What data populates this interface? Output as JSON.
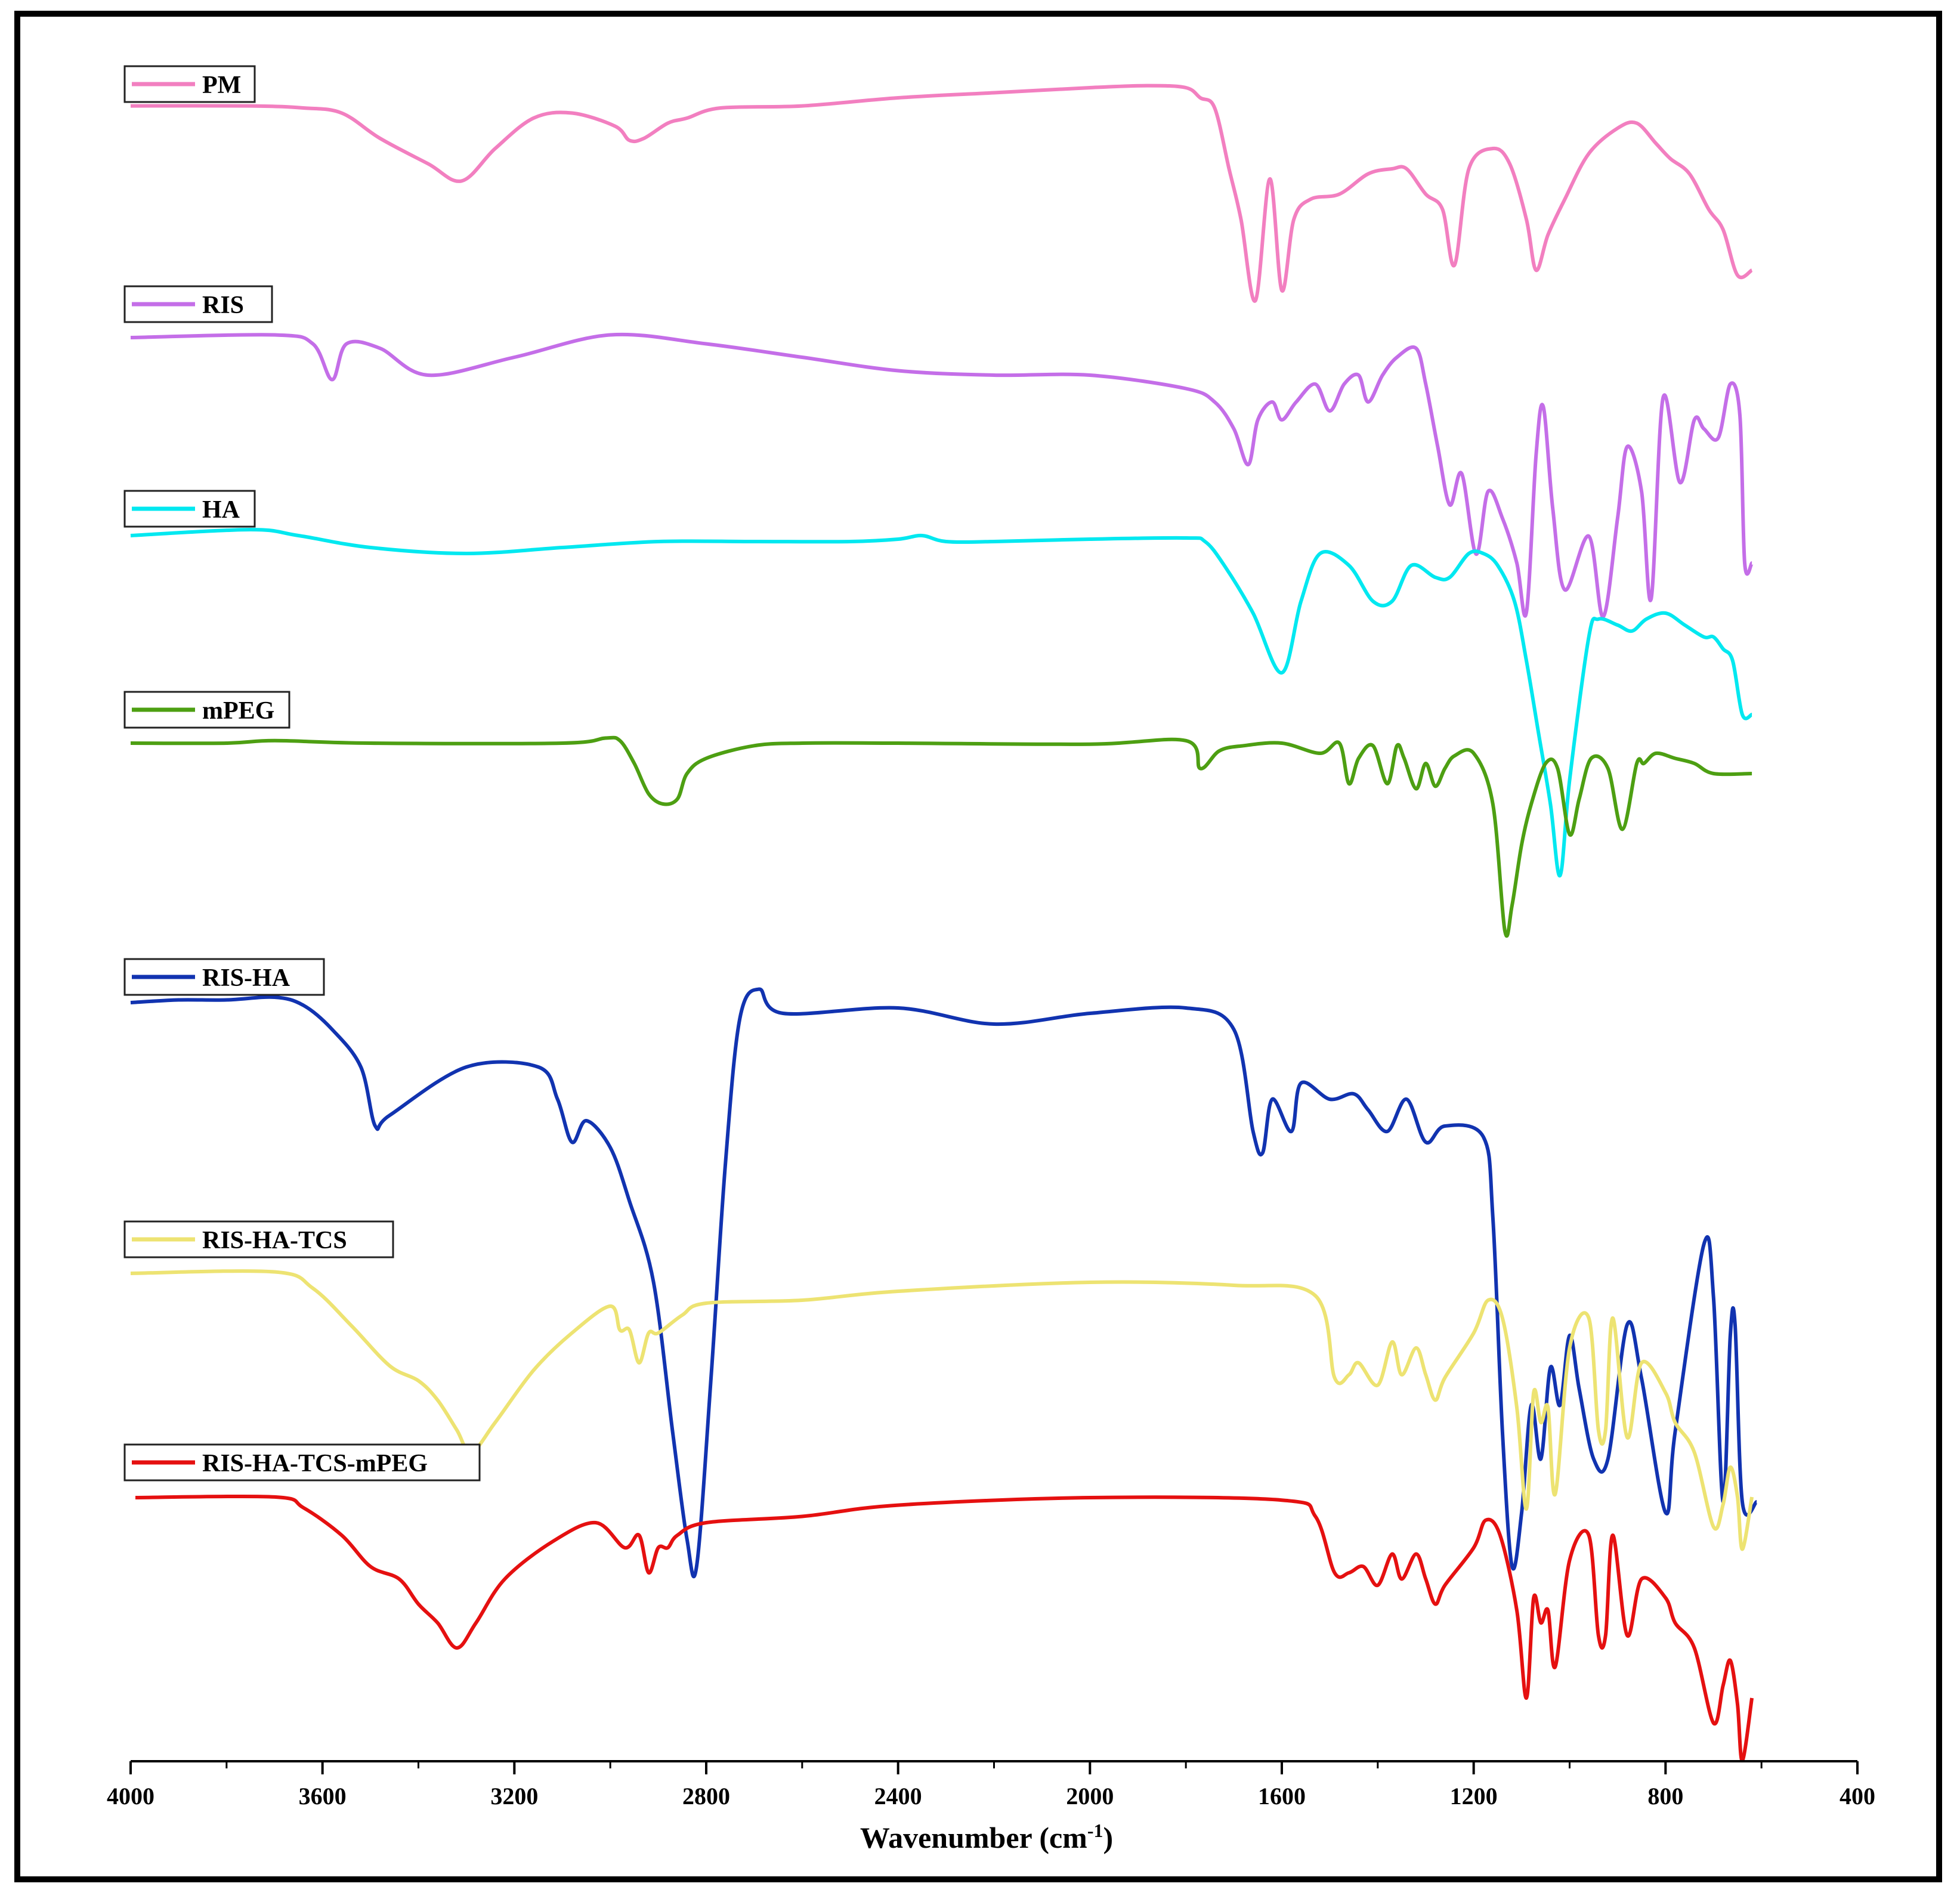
{
  "chart_data": {
    "type": "line",
    "xlabel": "Wavenumber (cm",
    "xlabel_sup": "-1",
    "xlabel_close": ")",
    "ylabel": "",
    "title": "",
    "xlim": [
      4000,
      400
    ],
    "x_reversed": true,
    "x_ticks": [
      4000,
      3600,
      3200,
      2800,
      2400,
      2000,
      1600,
      1200,
      800,
      400
    ],
    "x_tick_labels": [
      "4000",
      "3600",
      "3200",
      "2800",
      "2400",
      "2000",
      "1600",
      "1200",
      "800",
      "400"
    ],
    "y_axis_shown": false,
    "grid": false,
    "legend": "separate label box above each trace, top-left",
    "series": [
      {
        "name": "PM",
        "color": "#f27fc0",
        "x": [
          4000,
          3750,
          3640,
          3560,
          3480,
          3380,
          3310,
          3240,
          3160,
          3080,
          2990,
          2960,
          2930,
          2880,
          2840,
          2770,
          2600,
          2400,
          2200,
          2000,
          1880,
          1800,
          1770,
          1740,
          1710,
          1685,
          1655,
          1625,
          1600,
          1575,
          1540,
          1480,
          1420,
          1370,
          1340,
          1300,
          1265,
          1240,
          1210,
          1160,
          1125,
          1090,
          1070,
          1045,
          1010,
          960,
          900,
          860,
          820,
          790,
          750,
          710,
          680,
          650,
          620
        ],
        "y": [
          -0.12,
          -0.12,
          -0.1,
          -0.05,
          0.2,
          0.45,
          0.62,
          0.3,
          0.0,
          -0.05,
          0.08,
          0.22,
          0.2,
          0.05,
          0.0,
          -0.1,
          -0.12,
          -0.2,
          -0.25,
          -0.3,
          -0.32,
          -0.3,
          -0.2,
          -0.1,
          0.5,
          1.0,
          1.8,
          0.6,
          1.7,
          1.0,
          0.8,
          0.75,
          0.55,
          0.5,
          0.5,
          0.75,
          0.9,
          1.45,
          0.5,
          0.3,
          0.45,
          1.0,
          1.5,
          1.15,
          0.8,
          0.35,
          0.1,
          0.05,
          0.25,
          0.4,
          0.55,
          0.9,
          1.1,
          1.55,
          1.5
        ]
      },
      {
        "name": "RIS",
        "color": "#c46ee8",
        "x": [
          4000,
          3700,
          3620,
          3580,
          3550,
          3480,
          3380,
          3200,
          3000,
          2800,
          2600,
          2400,
          2200,
          2000,
          1800,
          1740,
          1700,
          1670,
          1650,
          1620,
          1600,
          1570,
          1530,
          1500,
          1470,
          1440,
          1420,
          1390,
          1360,
          1320,
          1300,
          1275,
          1250,
          1225,
          1195,
          1170,
          1140,
          1110,
          1090,
          1070,
          1055,
          1035,
          1010,
          960,
          930,
          900,
          880,
          850,
          830,
          805,
          770,
          740,
          720,
          690,
          665,
          645,
          635,
          620
        ],
        "y": [
          -0.02,
          -0.05,
          0.05,
          0.45,
          0.05,
          0.1,
          0.4,
          0.2,
          -0.05,
          0.05,
          0.2,
          0.35,
          0.4,
          0.4,
          0.55,
          0.7,
          1.0,
          1.4,
          0.9,
          0.7,
          0.9,
          0.7,
          0.5,
          0.8,
          0.5,
          0.4,
          0.7,
          0.4,
          0.2,
          0.1,
          0.5,
          1.2,
          1.85,
          1.5,
          2.4,
          1.7,
          2.0,
          2.5,
          3.05,
          1.3,
          0.75,
          1.9,
          2.8,
          2.2,
          3.1,
          2.0,
          1.2,
          1.7,
          2.9,
          0.65,
          1.6,
          0.9,
          1.0,
          1.1,
          0.5,
          0.85,
          2.5,
          2.5
        ]
      },
      {
        "name": "HA",
        "color": "#00e8f0",
        "x": [
          4000,
          3750,
          3650,
          3500,
          3300,
          3100,
          2900,
          2700,
          2500,
          2400,
          2350,
          2300,
          2200,
          2000,
          1800,
          1760,
          1720,
          1660,
          1600,
          1560,
          1520,
          1460,
          1410,
          1370,
          1330,
          1280,
          1250,
          1210,
          1180,
          1150,
          1115,
          1090,
          1065,
          1040,
          1020,
          1000,
          960,
          940,
          900,
          870,
          840,
          800,
          760,
          720,
          700,
          680,
          660,
          640,
          620
        ],
        "y": [
          -0.05,
          -0.1,
          -0.05,
          0.05,
          0.1,
          0.05,
          0.0,
          0.0,
          0.0,
          -0.02,
          -0.05,
          0.0,
          0.0,
          -0.02,
          -0.03,
          0.0,
          0.2,
          0.6,
          1.1,
          0.5,
          0.1,
          0.2,
          0.5,
          0.5,
          0.2,
          0.3,
          0.3,
          0.1,
          0.1,
          0.2,
          0.5,
          1.0,
          1.6,
          2.2,
          2.8,
          2.0,
          0.8,
          0.65,
          0.7,
          0.75,
          0.65,
          0.6,
          0.7,
          0.8,
          0.8,
          0.9,
          1.0,
          1.45,
          1.45
        ]
      },
      {
        "name": "mPEG",
        "color": "#4d9f12",
        "x": [
          4000,
          3800,
          3700,
          3500,
          3100,
          3010,
          2980,
          2950,
          2920,
          2890,
          2860,
          2840,
          2800,
          2700,
          2600,
          2400,
          2000,
          1800,
          1770,
          1730,
          1680,
          1600,
          1520,
          1480,
          1460,
          1440,
          1410,
          1380,
          1360,
          1345,
          1320,
          1300,
          1280,
          1260,
          1240,
          1200,
          1160,
          1135,
          1120,
          1100,
          1080,
          1050,
          1025,
          1000,
          980,
          955,
          920,
          890,
          860,
          845,
          820,
          780,
          740,
          700,
          620
        ],
        "y": [
          0.0,
          0.0,
          -0.05,
          0.0,
          0.0,
          -0.1,
          -0.05,
          0.4,
          1.0,
          1.2,
          1.1,
          0.6,
          0.3,
          0.05,
          0.0,
          0.0,
          0.02,
          -0.05,
          0.5,
          0.15,
          0.05,
          0.0,
          0.2,
          0.0,
          0.8,
          0.3,
          0.05,
          0.8,
          0.05,
          0.3,
          0.9,
          0.4,
          0.85,
          0.5,
          0.25,
          0.2,
          1.2,
          3.7,
          3.2,
          2.0,
          1.2,
          0.4,
          0.5,
          1.8,
          1.1,
          0.3,
          0.5,
          1.7,
          0.4,
          0.4,
          0.2,
          0.3,
          0.4,
          0.6,
          0.6
        ]
      },
      {
        "name": "RIS-HA",
        "color": "#1133b0",
        "x": [
          4000,
          3900,
          3800,
          3700,
          3640,
          3580,
          3520,
          3490,
          3460,
          3300,
          3150,
          3110,
          3080,
          3050,
          3000,
          2960,
          2910,
          2870,
          2840,
          2820,
          2790,
          2760,
          2730,
          2690,
          2640,
          2400,
          2200,
          2000,
          1800,
          1700,
          1660,
          1640,
          1620,
          1580,
          1560,
          1500,
          1450,
          1420,
          1380,
          1340,
          1300,
          1260,
          1180,
          1160,
          1140,
          1120,
          1100,
          1080,
          1060,
          1040,
          1020,
          1000,
          980,
          950,
          920,
          880,
          850,
          800,
          780,
          720,
          700,
          680,
          665,
          655,
          640,
          610
        ],
        "y": [
          0.0,
          -0.05,
          -0.05,
          -0.1,
          0.05,
          0.5,
          1.2,
          2.3,
          2.1,
          1.2,
          1.2,
          1.8,
          2.6,
          2.2,
          2.7,
          3.7,
          5.2,
          8.0,
          10.0,
          10.5,
          7.0,
          3.0,
          0.3,
          -0.25,
          0.2,
          0.1,
          0.4,
          0.2,
          0.1,
          0.5,
          2.4,
          2.8,
          1.8,
          2.4,
          1.5,
          1.8,
          1.7,
          2.0,
          2.4,
          1.8,
          2.6,
          2.3,
          2.5,
          4.0,
          8.0,
          10.5,
          9.5,
          7.5,
          8.5,
          6.8,
          7.5,
          6.2,
          7.2,
          8.5,
          8.5,
          6.0,
          7.0,
          9.5,
          8.0,
          4.5,
          5.5,
          9.3,
          6.2,
          6.0,
          9.3,
          9.3
        ]
      },
      {
        "name": "RIS-HA-TCS",
        "color": "#ede372",
        "x": [
          4000,
          3700,
          3620,
          3540,
          3460,
          3400,
          3360,
          3320,
          3290,
          3240,
          3160,
          3080,
          3000,
          2980,
          2960,
          2940,
          2920,
          2900,
          2850,
          2800,
          2600,
          2400,
          2000,
          1700,
          1530,
          1490,
          1460,
          1440,
          1400,
          1370,
          1350,
          1320,
          1300,
          1280,
          1260,
          1200,
          1170,
          1140,
          1110,
          1090,
          1075,
          1060,
          1045,
          1030,
          1000,
          960,
          940,
          925,
          910,
          880,
          850,
          800,
          780,
          740,
          700,
          680,
          665,
          650,
          640,
          620
        ],
        "y": [
          0.0,
          -0.1,
          1.0,
          3.5,
          6.2,
          7.2,
          8.5,
          10.5,
          12.0,
          10.0,
          6.5,
          4.0,
          2.2,
          3.8,
          3.8,
          6.0,
          4.0,
          4.0,
          2.8,
          2.0,
          1.8,
          1.2,
          0.6,
          0.8,
          1.5,
          7.0,
          6.8,
          6.0,
          7.5,
          4.6,
          6.8,
          5.0,
          6.8,
          8.5,
          7.0,
          4.0,
          1.8,
          3.0,
          9.0,
          15.8,
          8.0,
          10.0,
          9.0,
          14.8,
          5.0,
          3.0,
          10.5,
          10.5,
          3.0,
          11.0,
          6.0,
          8.0,
          10.0,
          12.0,
          17.0,
          15.5,
          13.0,
          15.0,
          18.5,
          15.0
        ]
      },
      {
        "name": "RIS-HA-TCS-mPEG",
        "color": "#e51010",
        "x": [
          3990,
          3700,
          3640,
          3560,
          3500,
          3440,
          3400,
          3360,
          3320,
          3280,
          3220,
          3120,
          3030,
          2970,
          2940,
          2920,
          2900,
          2880,
          2860,
          2800,
          2600,
          2400,
          2000,
          1600,
          1530,
          1490,
          1460,
          1430,
          1400,
          1370,
          1350,
          1320,
          1300,
          1280,
          1260,
          1200,
          1175,
          1145,
          1110,
          1090,
          1075,
          1060,
          1045,
          1030,
          1000,
          960,
          940,
          925,
          910,
          880,
          850,
          800,
          780,
          740,
          700,
          680,
          665,
          650,
          640,
          620
        ],
        "y": [
          0.0,
          -0.05,
          0.8,
          3.0,
          5.5,
          6.5,
          8.5,
          10.0,
          12.0,
          10.0,
          6.5,
          3.5,
          2.0,
          4.0,
          3.0,
          6.0,
          4.0,
          4.0,
          3.0,
          2.0,
          1.5,
          0.6,
          0.0,
          0.2,
          1.5,
          6.0,
          6.0,
          5.5,
          7.0,
          4.5,
          6.5,
          4.5,
          6.5,
          8.5,
          7.0,
          4.0,
          1.8,
          3.0,
          9.0,
          16.0,
          8.0,
          10.0,
          9.0,
          13.5,
          5.0,
          3.0,
          11.0,
          11.0,
          3.0,
          11.0,
          6.5,
          8.0,
          10.0,
          12.0,
          18.0,
          15.0,
          13.0,
          16.5,
          21.0,
          16.0
        ]
      }
    ]
  }
}
